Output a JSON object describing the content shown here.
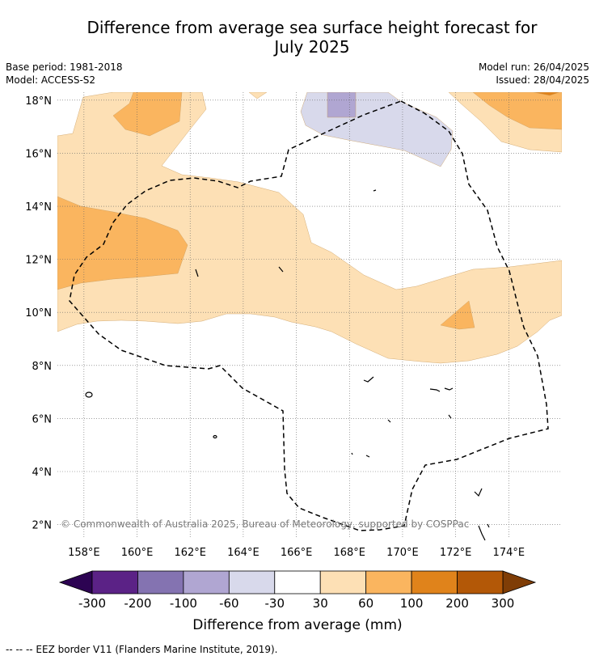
{
  "title_line1": "Difference from average sea surface height forecast for",
  "title_line2": "July 2025",
  "meta_left": {
    "base_period": "Base period: 1981-2018",
    "model": "Model: ACCESS-S2"
  },
  "meta_right": {
    "model_run": "Model run: 26/04/2025",
    "issued": "Issued: 28/04/2025"
  },
  "map": {
    "lon_range": [
      157,
      176
    ],
    "lat_range": [
      1.5,
      18.3
    ],
    "lat_ticks": [
      "2°N",
      "4°N",
      "6°N",
      "8°N",
      "10°N",
      "12°N",
      "14°N",
      "16°N",
      "18°N"
    ],
    "lon_ticks": [
      "158°E",
      "160°E",
      "162°E",
      "164°E",
      "166°E",
      "168°E",
      "170°E",
      "172°E",
      "174°E"
    ],
    "copyright": "© Commonwealth of Australia 2025, Bureau of Meteorology, supported by COSPPac"
  },
  "colorbar": {
    "colors": {
      "c_m300": "#5b2286",
      "c_m200": "#8473b1",
      "c_m100": "#b0a6d2",
      "c_m60": "#d8d9eb",
      "c_m30": "#ffffff",
      "c_30": "#fde0b5",
      "c_60": "#fab55f",
      "c_100": "#e0831b",
      "c_200": "#b35807",
      "extend_low": "#2c0352",
      "extend_high": "#7f3d06"
    },
    "tick_labels": [
      "-300",
      "-200",
      "-100",
      "-60",
      "-30",
      "30",
      "60",
      "100",
      "200",
      "300"
    ],
    "label": "Difference from average (mm)"
  },
  "footer": "--  --  -- EEZ border V11 (Flanders Marine Institute, 2019)."
}
